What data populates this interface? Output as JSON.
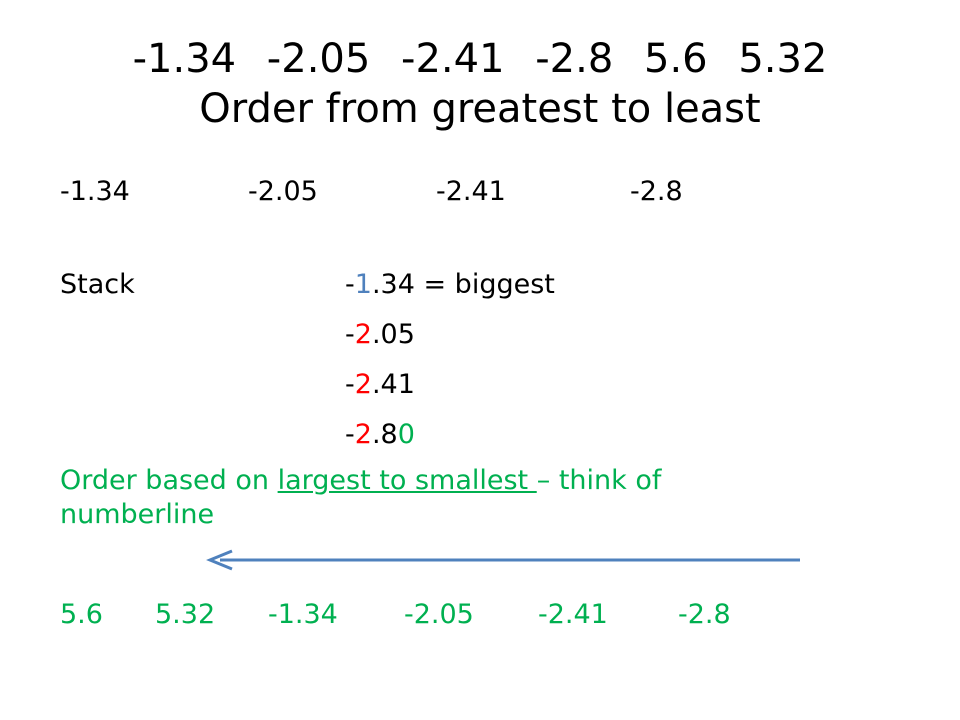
{
  "title": {
    "numbers": "-1.34    -2.05    -2.41    -2.8    5.6    5.32",
    "subtitle": "Order from greatest to least"
  },
  "negatives_row": [
    "-1.34",
    "-2.05",
    "-2.41",
    "-2.8"
  ],
  "stack": {
    "label": "Stack",
    "rows": [
      {
        "sign": "-",
        "colored": "1",
        "rest": ".34",
        "suffix": " = biggest",
        "color": "#4f81bd"
      },
      {
        "sign": "-",
        "colored": "2",
        "rest": ".05",
        "suffix": "",
        "color": "#ff0000"
      },
      {
        "sign": "-",
        "colored": "2",
        "rest": ".41",
        "suffix": "",
        "color": "#ff0000"
      },
      {
        "sign": "-",
        "colored": "2",
        "rest": ".8",
        "extra": "0",
        "suffix": "",
        "color": "#ff0000",
        "extra_color": "#00b050"
      }
    ]
  },
  "note": {
    "prefix": "Order based on ",
    "underlined": "largest to smallest ",
    "suffix": "– think of",
    "line2": "numberline"
  },
  "arrow": {
    "color": "#4f81bd",
    "direction": "left"
  },
  "answer": [
    "5.6",
    "5.32",
    "-1.34",
    "-2.05",
    "-2.41",
    "-2.8"
  ],
  "colors": {
    "blue": "#4f81bd",
    "red": "#ff0000",
    "green": "#00b050"
  }
}
